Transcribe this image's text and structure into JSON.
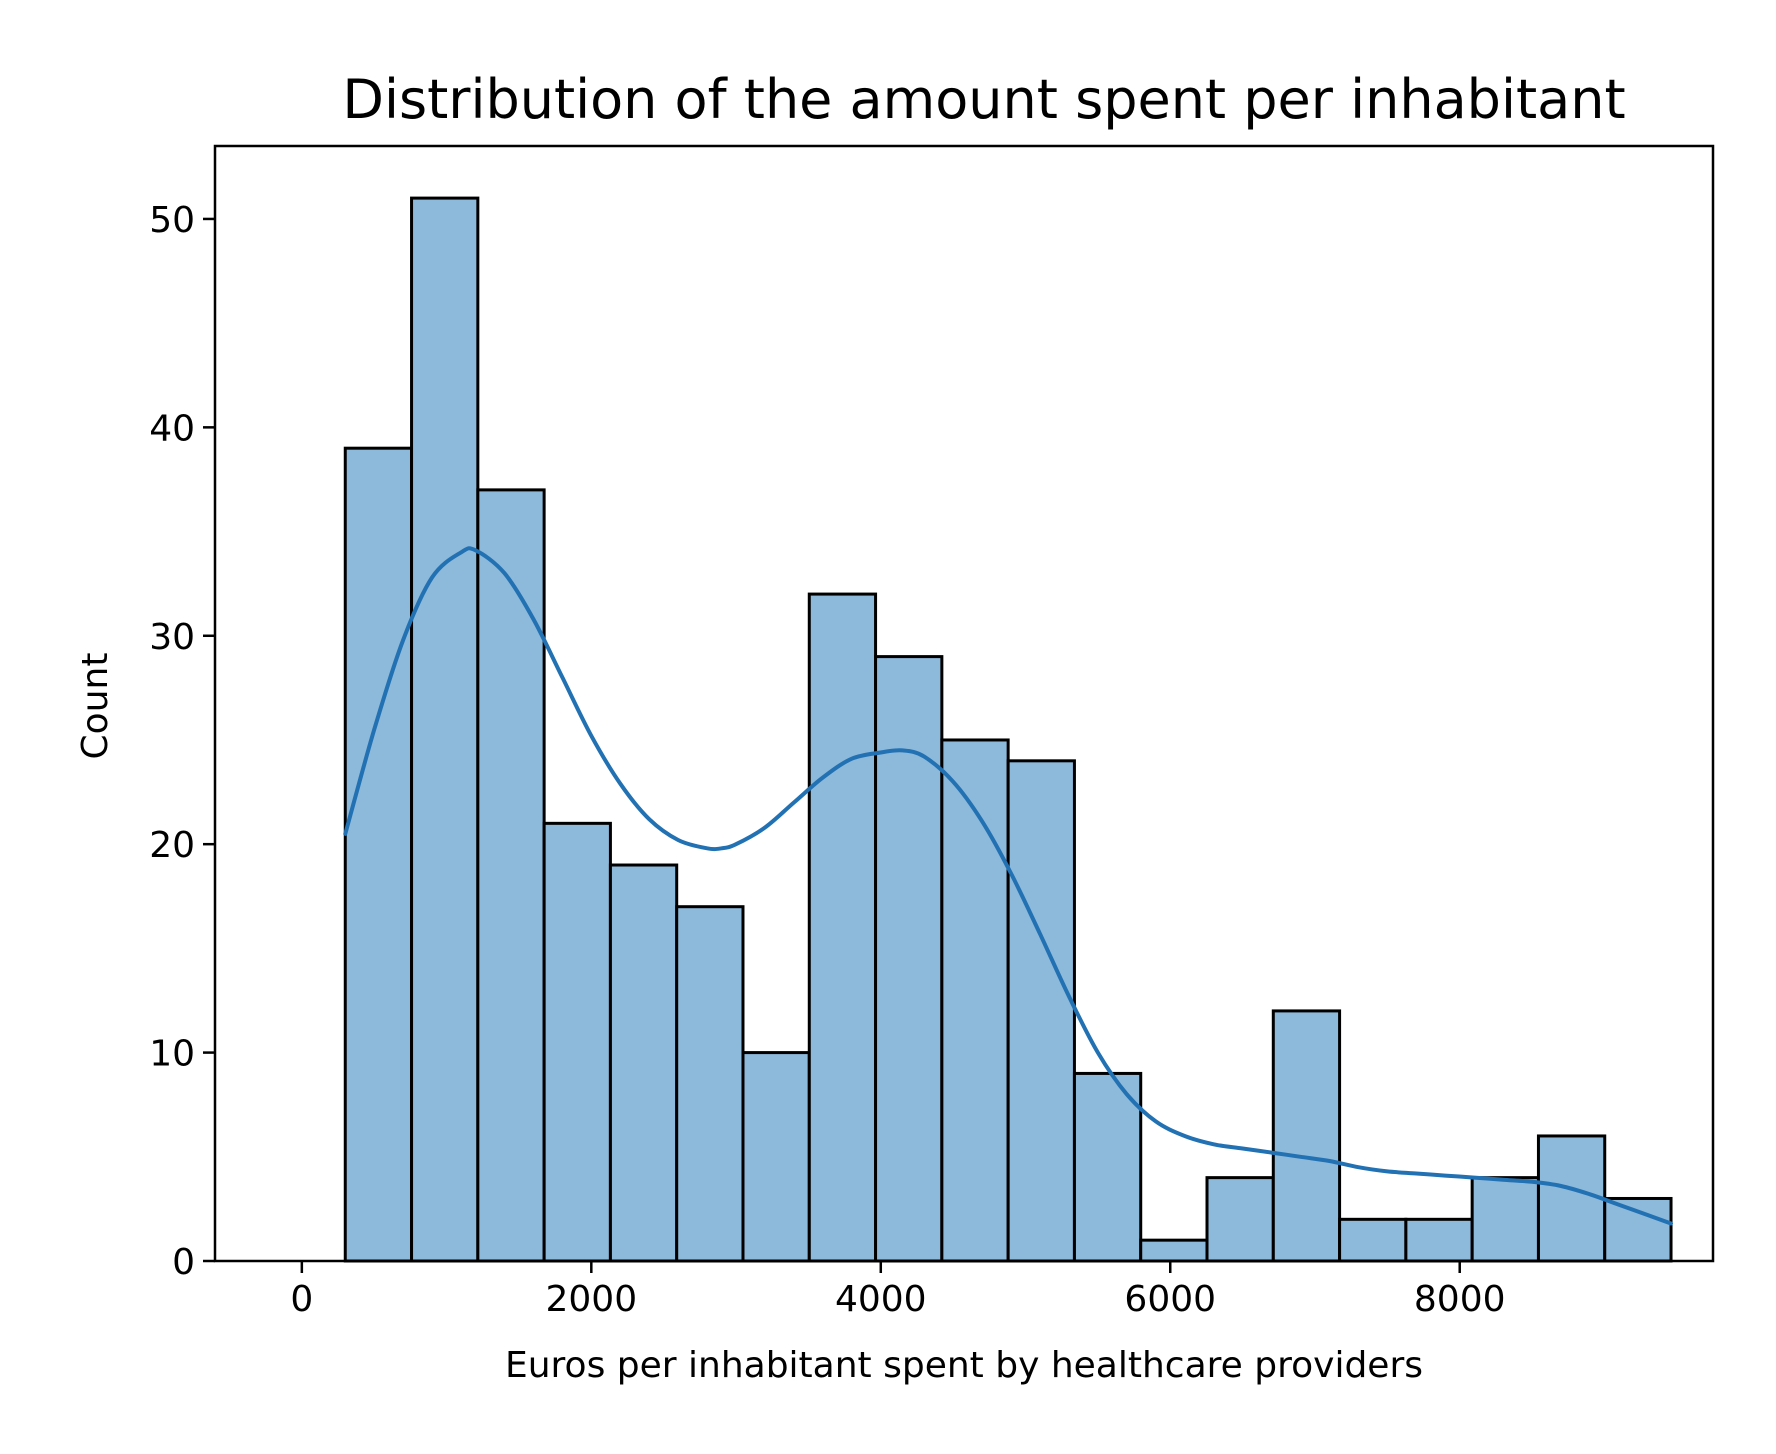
{
  "chart_data": {
    "type": "bar",
    "subtype": "histogram-with-kde",
    "title": "Distribution of the amount spent per inhabitant",
    "xlabel": "Euros per inhabitant spent by healthcare providers",
    "ylabel": "Count",
    "xlim": [
      -600,
      9750
    ],
    "ylim": [
      0,
      53.5
    ],
    "xticks": [
      0,
      2000,
      4000,
      6000,
      8000
    ],
    "yticks": [
      0,
      10,
      20,
      30,
      40,
      50
    ],
    "bin_start": 300,
    "bin_width": 458,
    "counts": [
      39,
      51,
      37,
      21,
      19,
      17,
      10,
      32,
      29,
      25,
      24,
      9,
      1,
      4,
      12,
      2,
      2,
      4,
      6,
      3
    ],
    "kde": {
      "x": [
        300,
        500,
        700,
        900,
        1100,
        1200,
        1400,
        1600,
        1800,
        2000,
        2200,
        2400,
        2600,
        2800,
        2900,
        3000,
        3200,
        3400,
        3600,
        3800,
        4000,
        4150,
        4300,
        4500,
        4700,
        4900,
        5100,
        5300,
        5500,
        5700,
        5900,
        6100,
        6300,
        6500,
        6700,
        6900,
        7100,
        7300,
        7500,
        7700,
        7900,
        8100,
        8300,
        8500,
        8700,
        8900,
        9100,
        9300,
        9460
      ],
      "y": [
        20.5,
        25.5,
        29.8,
        32.8,
        34.0,
        34.1,
        33.0,
        30.8,
        28.0,
        25.2,
        22.9,
        21.2,
        20.2,
        19.8,
        19.8,
        20.0,
        20.8,
        22.0,
        23.2,
        24.1,
        24.4,
        24.5,
        24.2,
        23.0,
        21.1,
        18.6,
        15.7,
        12.7,
        10.0,
        8.0,
        6.7,
        6.0,
        5.6,
        5.4,
        5.2,
        5.0,
        4.8,
        4.5,
        4.3,
        4.2,
        4.1,
        4.0,
        3.9,
        3.8,
        3.6,
        3.2,
        2.7,
        2.2,
        1.8
      ]
    },
    "bar_color": "#8db9db",
    "edge_color": "#000000",
    "line_color": "#2271b3",
    "grid": false,
    "legend": "none"
  }
}
